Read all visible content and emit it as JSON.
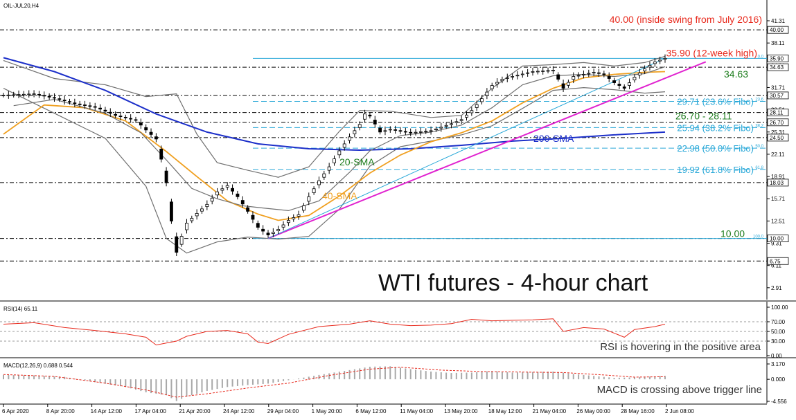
{
  "chart_data": [
    {
      "type": "candlestick",
      "title": "WTI futures - 4-hour chart",
      "header": "OIL-JUL20,H4",
      "x_tick_labels": [
        "6 Apr 2020",
        "8 Apr 20:00",
        "14 Apr 12:00",
        "17 Apr 04:00",
        "21 Apr 20:00",
        "24 Apr 12:00",
        "29 Apr 04:00",
        "1 May 20:00",
        "6 May 12:00",
        "11 May 04:00",
        "13 May 20:00",
        "18 May 12:00",
        "21 May 04:00",
        "26 May 00:00",
        "28 May 16:00",
        "2 Jun 08:00"
      ],
      "y_tick_labels": [
        "41.31",
        "38.11",
        "34.91",
        "31.71",
        "28.51",
        "25.31",
        "22.11",
        "18.91",
        "15.71",
        "12.51",
        "9.31",
        "6.11",
        "2.91"
      ],
      "y_range": [
        1.5,
        43.5
      ],
      "price_labels": [
        {
          "value": 40.0,
          "text": "40.00",
          "color": "#000000"
        },
        {
          "value": 35.9,
          "text": "35.90",
          "color": "#000000"
        },
        {
          "value": 34.63,
          "text": "34.63",
          "color": "#000000"
        },
        {
          "value": 30.57,
          "text": "30.57",
          "color": "#000000"
        },
        {
          "value": 28.11,
          "text": "28.11",
          "color": "#000000"
        },
        {
          "value": 26.7,
          "text": "26.70",
          "color": "#000000"
        },
        {
          "value": 24.5,
          "text": "24.50",
          "color": "#000000"
        },
        {
          "value": 18.03,
          "text": "18.03",
          "color": "#000000"
        },
        {
          "value": 10.0,
          "text": "10.00",
          "color": "#000000"
        },
        {
          "value": 6.75,
          "text": "6.75",
          "color": "#000000"
        }
      ],
      "levels": [
        {
          "value": 40.0,
          "text": "40.00 (inside swing from July 2016)",
          "color": "#e8291c"
        },
        {
          "value": 35.9,
          "text": "35.90 (12-week high)",
          "color": "#e8291c"
        },
        {
          "value": 34.63,
          "text": "34.63",
          "color": "#1e7d1e"
        },
        {
          "value": 28.11,
          "text": "26.70 - 28.11",
          "color": "#1e7d1e"
        },
        {
          "value": 10.0,
          "text": "10.00",
          "color": "#1e7d1e"
        }
      ],
      "fibonacci": [
        {
          "value": 35.9,
          "ratio": "0.0",
          "text": ""
        },
        {
          "value": 29.71,
          "ratio": "23.6",
          "text": "29.71 (23.6% Fibo)"
        },
        {
          "value": 25.94,
          "ratio": "38.2",
          "text": "25.94 (38.2% Fibo)"
        },
        {
          "value": 22.98,
          "ratio": "50.0",
          "text": "22.98 (50.0% Fibo)"
        },
        {
          "value": 19.92,
          "ratio": "61.8",
          "text": "19.92 (61.8% Fibo)"
        },
        {
          "value": 10.0,
          "ratio": "100.0",
          "text": ""
        }
      ],
      "indicator_labels": {
        "sma20": "20-SMA",
        "sma40": "40-SMA",
        "sma200": "200-SMA"
      },
      "price_series": [
        [
          0,
          30.6
        ],
        [
          6,
          30.8
        ],
        [
          10,
          30.2
        ],
        [
          14,
          29.4
        ],
        [
          18,
          28.9
        ],
        [
          22,
          27.7
        ],
        [
          26,
          27.0
        ],
        [
          28,
          25.6
        ],
        [
          30,
          24.3
        ],
        [
          31,
          21.4
        ],
        [
          32,
          18.0
        ],
        [
          33,
          12.5
        ],
        [
          34,
          8.0
        ],
        [
          35,
          10.3
        ],
        [
          36,
          12.2
        ],
        [
          38,
          13.6
        ],
        [
          40,
          14.9
        ],
        [
          42,
          16.7
        ],
        [
          44,
          17.6
        ],
        [
          46,
          16.0
        ],
        [
          48,
          13.9
        ],
        [
          50,
          11.6
        ],
        [
          52,
          10.5
        ],
        [
          54,
          11.3
        ],
        [
          56,
          12.6
        ],
        [
          58,
          13.4
        ],
        [
          60,
          16.0
        ],
        [
          62,
          18.3
        ],
        [
          64,
          20.3
        ],
        [
          66,
          22.6
        ],
        [
          68,
          24.6
        ],
        [
          70,
          26.4
        ],
        [
          71,
          27.9
        ],
        [
          72,
          27.6
        ],
        [
          74,
          25.3
        ],
        [
          76,
          25.7
        ],
        [
          80,
          25.2
        ],
        [
          84,
          25.5
        ],
        [
          86,
          26.0
        ],
        [
          88,
          26.5
        ],
        [
          90,
          27.1
        ],
        [
          92,
          28.4
        ],
        [
          94,
          30.1
        ],
        [
          96,
          32.0
        ],
        [
          98,
          32.9
        ],
        [
          100,
          33.3
        ],
        [
          104,
          34.0
        ],
        [
          108,
          34.2
        ],
        [
          110,
          31.6
        ],
        [
          112,
          33.3
        ],
        [
          116,
          33.9
        ],
        [
          118,
          33.6
        ],
        [
          120,
          32.4
        ],
        [
          122,
          31.6
        ],
        [
          124,
          33.2
        ],
        [
          126,
          34.4
        ],
        [
          128,
          35.4
        ],
        [
          130,
          35.9
        ]
      ],
      "sma20_series": [
        [
          2,
          29.1
        ],
        [
          10,
          30.0
        ],
        [
          20,
          28.0
        ],
        [
          27,
          25.2
        ],
        [
          32,
          21.3
        ],
        [
          37,
          17.2
        ],
        [
          42,
          15.7
        ],
        [
          47,
          14.7
        ],
        [
          52,
          14.3
        ],
        [
          56,
          14.0
        ],
        [
          62,
          15.4
        ],
        [
          68,
          19.5
        ],
        [
          72,
          22.6
        ],
        [
          78,
          24.8
        ],
        [
          84,
          25.3
        ],
        [
          90,
          26.3
        ],
        [
          96,
          28.8
        ],
        [
          102,
          32.1
        ],
        [
          108,
          33.4
        ],
        [
          114,
          33.6
        ],
        [
          120,
          33.3
        ],
        [
          126,
          33.7
        ],
        [
          130,
          34.7
        ]
      ],
      "sma40_series": [
        [
          0,
          25.0
        ],
        [
          8,
          29.2
        ],
        [
          16,
          28.8
        ],
        [
          24,
          26.9
        ],
        [
          32,
          22.5
        ],
        [
          38,
          18.9
        ],
        [
          44,
          15.4
        ],
        [
          50,
          13.5
        ],
        [
          54,
          12.6
        ],
        [
          60,
          13.3
        ],
        [
          66,
          16.1
        ],
        [
          72,
          19.4
        ],
        [
          78,
          22.0
        ],
        [
          84,
          23.9
        ],
        [
          90,
          25.2
        ],
        [
          96,
          26.9
        ],
        [
          102,
          29.5
        ],
        [
          108,
          31.6
        ],
        [
          114,
          33.1
        ],
        [
          120,
          33.6
        ],
        [
          126,
          33.9
        ],
        [
          130,
          34.0
        ]
      ],
      "sma200_series": [
        [
          0,
          36.0
        ],
        [
          10,
          34.0
        ],
        [
          20,
          31.3
        ],
        [
          30,
          27.9
        ],
        [
          40,
          25.3
        ],
        [
          50,
          23.6
        ],
        [
          60,
          22.9
        ],
        [
          70,
          22.7
        ],
        [
          80,
          22.9
        ],
        [
          90,
          23.4
        ],
        [
          100,
          24.0
        ],
        [
          110,
          24.4
        ],
        [
          120,
          24.9
        ],
        [
          130,
          25.3
        ]
      ],
      "bb_upper_series": [
        [
          0,
          35.6
        ],
        [
          10,
          33.0
        ],
        [
          20,
          32.1
        ],
        [
          28,
          30.4
        ],
        [
          34,
          30.8
        ],
        [
          38,
          25.0
        ],
        [
          42,
          20.9
        ],
        [
          48,
          19.8
        ],
        [
          54,
          18.8
        ],
        [
          60,
          20.3
        ],
        [
          66,
          25.4
        ],
        [
          70,
          28.4
        ],
        [
          76,
          28.3
        ],
        [
          84,
          27.4
        ],
        [
          90,
          27.7
        ],
        [
          96,
          31.6
        ],
        [
          102,
          34.8
        ],
        [
          108,
          35.0
        ],
        [
          114,
          35.3
        ],
        [
          120,
          34.8
        ],
        [
          126,
          35.3
        ],
        [
          130,
          36.2
        ]
      ],
      "bb_lower_series": [
        [
          0,
          31.6
        ],
        [
          10,
          28.0
        ],
        [
          20,
          24.4
        ],
        [
          28,
          17.5
        ],
        [
          32,
          10.0
        ],
        [
          36,
          7.9
        ],
        [
          42,
          9.5
        ],
        [
          48,
          10.2
        ],
        [
          54,
          9.9
        ],
        [
          60,
          10.3
        ],
        [
          66,
          14.2
        ],
        [
          72,
          20.4
        ],
        [
          78,
          23.2
        ],
        [
          84,
          24.0
        ],
        [
          90,
          24.9
        ],
        [
          96,
          26.2
        ],
        [
          102,
          28.7
        ],
        [
          108,
          31.3
        ],
        [
          114,
          31.7
        ],
        [
          120,
          31.4
        ],
        [
          126,
          30.9
        ],
        [
          130,
          31.1
        ]
      ],
      "trendlines": [
        {
          "from": [
            52,
            10.0
          ],
          "to": [
            138,
            35.4
          ],
          "color": "#e022cf"
        },
        {
          "from": [
            52,
            10.0
          ],
          "to": [
            130,
            35.9
          ],
          "color": "#29a8d8"
        }
      ]
    },
    {
      "type": "line",
      "header": "RSI(14) 65.11",
      "y_tick_labels": [
        "100.00",
        "70.00",
        "50.00",
        "30.00",
        "0.00"
      ],
      "ylim": [
        0,
        100
      ],
      "levels": [
        70,
        50,
        30
      ],
      "annotation": "RSI is hovering in the positive area",
      "series": [
        {
          "values": [
            [
              0,
              65
            ],
            [
              6,
              68
            ],
            [
              12,
              58
            ],
            [
              18,
              52
            ],
            [
              24,
              45
            ],
            [
              28,
              38
            ],
            [
              30,
              22
            ],
            [
              32,
              26
            ],
            [
              34,
              30
            ],
            [
              36,
              40
            ],
            [
              40,
              50
            ],
            [
              44,
              52
            ],
            [
              48,
              45
            ],
            [
              50,
              28
            ],
            [
              52,
              25
            ],
            [
              56,
              44
            ],
            [
              62,
              60
            ],
            [
              68,
              65
            ],
            [
              72,
              72
            ],
            [
              76,
              65
            ],
            [
              80,
              62
            ],
            [
              84,
              63
            ],
            [
              88,
              66
            ],
            [
              92,
              75
            ],
            [
              96,
              72
            ],
            [
              100,
              73
            ],
            [
              104,
              74
            ],
            [
              108,
              76
            ],
            [
              110,
              50
            ],
            [
              114,
              58
            ],
            [
              118,
              55
            ],
            [
              122,
              38
            ],
            [
              124,
              54
            ],
            [
              128,
              60
            ],
            [
              130,
              65
            ]
          ],
          "color": "#e8291c"
        }
      ]
    },
    {
      "type": "bar",
      "header": "MACD(12,26,9) 0.688 0.544",
      "y_tick_labels": [
        "3.170",
        "0.000",
        "-4.556"
      ],
      "ylim": [
        -4.556,
        3.17
      ],
      "annotation": "MACD is crossing above trigger line",
      "histogram": [
        [
          0,
          0.9
        ],
        [
          6,
          0.8
        ],
        [
          12,
          0.5
        ],
        [
          18,
          -0.6
        ],
        [
          24,
          -1.6
        ],
        [
          28,
          -2.7
        ],
        [
          32,
          -3.3
        ],
        [
          34,
          -4.5
        ],
        [
          36,
          -3.6
        ],
        [
          40,
          -2.4
        ],
        [
          44,
          -1.6
        ],
        [
          48,
          -1.2
        ],
        [
          52,
          -0.9
        ],
        [
          56,
          -0.2
        ],
        [
          62,
          0.9
        ],
        [
          68,
          1.9
        ],
        [
          72,
          2.6
        ],
        [
          76,
          2.7
        ],
        [
          80,
          2.1
        ],
        [
          84,
          1.6
        ],
        [
          88,
          1.3
        ],
        [
          92,
          1.4
        ],
        [
          96,
          1.7
        ],
        [
          100,
          1.4
        ],
        [
          104,
          1.5
        ],
        [
          108,
          1.6
        ],
        [
          112,
          1.1
        ],
        [
          116,
          0.7
        ],
        [
          120,
          0.3
        ],
        [
          124,
          0.4
        ],
        [
          128,
          0.6
        ],
        [
          130,
          0.69
        ]
      ],
      "signal": [
        [
          0,
          1.0
        ],
        [
          10,
          0.6
        ],
        [
          20,
          -0.8
        ],
        [
          28,
          -2.2
        ],
        [
          34,
          -3.7
        ],
        [
          40,
          -3.0
        ],
        [
          48,
          -1.8
        ],
        [
          56,
          -0.8
        ],
        [
          64,
          0.8
        ],
        [
          72,
          2.1
        ],
        [
          78,
          2.5
        ],
        [
          86,
          1.9
        ],
        [
          94,
          1.6
        ],
        [
          102,
          1.5
        ],
        [
          110,
          1.4
        ],
        [
          118,
          0.9
        ],
        [
          124,
          0.45
        ],
        [
          130,
          0.54
        ]
      ],
      "signal_color": "#e8291c",
      "histogram_color": "#a8a8a8"
    }
  ]
}
